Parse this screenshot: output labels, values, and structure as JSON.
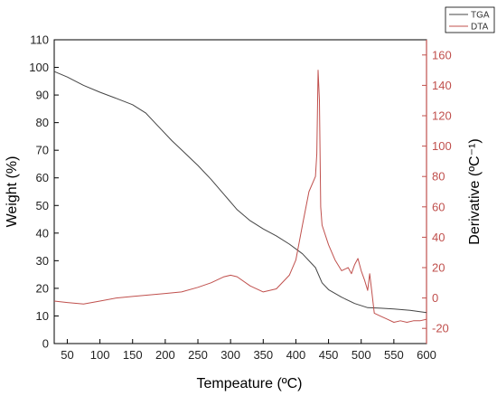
{
  "chart_data": {
    "type": "line",
    "xlabel": "Tempeature (ºC)",
    "ylabel_left": "Weight (%)",
    "ylabel_right": "Derivative (ºC⁻¹)",
    "xlim": [
      30,
      600
    ],
    "ylim_left": [
      0,
      110
    ],
    "ylim_right": [
      -30,
      170
    ],
    "xticks": [
      50,
      100,
      150,
      200,
      250,
      300,
      350,
      400,
      450,
      500,
      550,
      600
    ],
    "yticks_left": [
      0,
      10,
      20,
      30,
      40,
      50,
      60,
      70,
      80,
      90,
      100,
      110
    ],
    "yticks_right": [
      -20,
      0,
      20,
      40,
      60,
      80,
      100,
      120,
      140,
      160
    ],
    "grid": false,
    "legend_position": "top-right",
    "series": [
      {
        "name": "TGA",
        "axis": "left",
        "color": "#444444",
        "x": [
          30,
          50,
          75,
          100,
          125,
          150,
          170,
          190,
          210,
          230,
          250,
          270,
          290,
          310,
          330,
          350,
          370,
          390,
          410,
          430,
          440,
          450,
          470,
          490,
          510,
          530,
          550,
          575,
          600
        ],
        "y": [
          98.5,
          96.5,
          93.5,
          91,
          88.8,
          86.5,
          83.5,
          78.5,
          73.5,
          69,
          64.5,
          59.5,
          54,
          48.5,
          44.5,
          41.5,
          39,
          36,
          32.5,
          27.5,
          22,
          19.5,
          16.8,
          14.5,
          13,
          12.8,
          12.5,
          12,
          11.2
        ]
      },
      {
        "name": "DTA",
        "axis": "right",
        "color": "#c0504d",
        "x": [
          30,
          50,
          75,
          100,
          125,
          150,
          175,
          200,
          225,
          250,
          270,
          290,
          300,
          310,
          330,
          350,
          370,
          390,
          400,
          410,
          420,
          430,
          432,
          434,
          436,
          438,
          440,
          450,
          460,
          470,
          480,
          485,
          490,
          495,
          500,
          505,
          510,
          513,
          516,
          520,
          530,
          540,
          550,
          560,
          570,
          580,
          590,
          600
        ],
        "y": [
          -2,
          -3,
          -4,
          -2,
          0,
          1,
          2,
          3,
          4,
          7,
          10,
          14,
          15,
          14,
          8,
          4,
          6,
          15,
          25,
          48,
          70,
          80,
          95,
          150,
          130,
          60,
          48,
          35,
          25,
          18,
          20,
          16,
          22,
          26,
          18,
          12,
          5,
          16,
          5,
          -10,
          -12,
          -14,
          -16,
          -15,
          -16,
          -15,
          -15,
          -14
        ]
      }
    ]
  }
}
